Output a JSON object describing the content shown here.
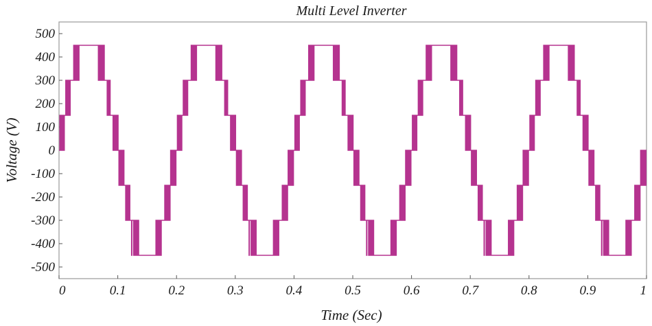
{
  "chart_data": {
    "type": "line",
    "title": "Multi Level Inverter",
    "xlabel": "Time (Sec)",
    "ylabel": "Voltage (V)",
    "xlim": [
      0,
      1
    ],
    "ylim": [
      -550,
      550
    ],
    "x_ticks": [
      "0",
      "0.1",
      "0.2",
      "0.3",
      "0.4",
      "0.5",
      "0.6",
      "0.7",
      "0.8",
      "0.9",
      "1"
    ],
    "y_ticks": [
      "500",
      "400",
      "300",
      "200",
      "100",
      "0",
      "-100",
      "-200",
      "-300",
      "-400",
      "-500"
    ],
    "grid": false,
    "series": [
      {
        "name": "",
        "color": "#b5338f",
        "frequency_hz": 5,
        "level_step": 150,
        "levels": [
          -450,
          -300,
          -150,
          0,
          150,
          300,
          450
        ]
      }
    ]
  }
}
